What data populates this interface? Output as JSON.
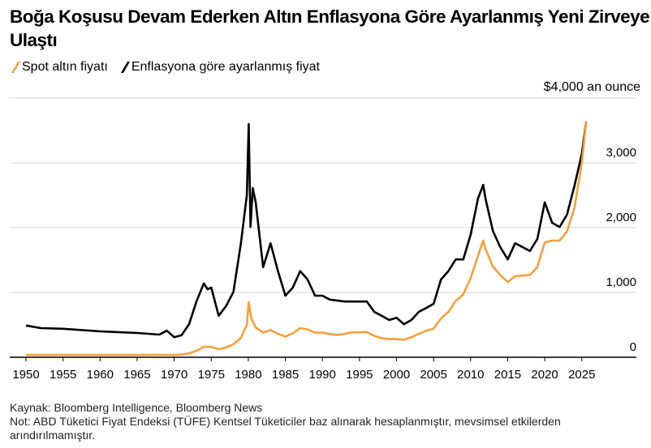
{
  "chart_data": {
    "type": "line",
    "title": "Boğa Koşusu Devam Ederken Altın Enflasyona Göre Ayarlanmış Yeni Zirveye Ulaştı",
    "unit_label": "$4,000 an ounce",
    "xlim": [
      1948.5,
      2033
    ],
    "ylim": [
      0,
      4000
    ],
    "x_ticks": [
      "1950",
      "1955",
      "1960",
      "1965",
      "1970",
      "1975",
      "1980",
      "1985",
      "1990",
      "1995",
      "2000",
      "2005",
      "2010",
      "2015",
      "2020",
      "2025"
    ],
    "y_ticks": [
      {
        "value": 0,
        "label": "0"
      },
      {
        "value": 1000,
        "label": "1,000"
      },
      {
        "value": 2000,
        "label": "2,000"
      },
      {
        "value": 3000,
        "label": "3,000"
      },
      {
        "value": 4000,
        "label": ""
      }
    ],
    "grid": true,
    "legend_position": "top-left",
    "series": [
      {
        "name": "Spot altın fiyatı",
        "color": "#f5a03a",
        "x": [
          1950,
          1955,
          1960,
          1965,
          1968,
          1970,
          1971,
          1972,
          1973,
          1974,
          1975,
          1976,
          1977,
          1978,
          1979,
          1979.8,
          1980.05,
          1980.4,
          1981,
          1982,
          1983,
          1984,
          1985,
          1986,
          1987,
          1988,
          1989,
          1990,
          1991,
          1992,
          1993,
          1994,
          1995,
          1996,
          1997,
          1998,
          1999,
          2000,
          2001,
          2002,
          2003,
          2004,
          2005,
          2006,
          2007,
          2008,
          2009,
          2010,
          2011,
          2011.7,
          2012,
          2013,
          2014,
          2015,
          2016,
          2017,
          2018,
          2019,
          2020,
          2021,
          2022,
          2023,
          2024,
          2025,
          2025.6
        ],
        "y": [
          35,
          35,
          35,
          35,
          38,
          36,
          42,
          60,
          100,
          160,
          160,
          125,
          150,
          200,
          300,
          500,
          850,
          600,
          460,
          380,
          420,
          360,
          320,
          370,
          450,
          430,
          380,
          380,
          360,
          345,
          360,
          385,
          385,
          390,
          330,
          295,
          280,
          280,
          270,
          310,
          360,
          410,
          440,
          600,
          700,
          870,
          970,
          1220,
          1570,
          1800,
          1670,
          1400,
          1270,
          1160,
          1250,
          1260,
          1270,
          1390,
          1770,
          1800,
          1800,
          1940,
          2300,
          3000,
          3640
        ]
      },
      {
        "name": "Enflasyona göre ayarlanmış fiyat",
        "color": "#000000",
        "x": [
          1950,
          1952,
          1955,
          1960,
          1965,
          1968,
          1969,
          1970,
          1971,
          1972,
          1973,
          1974,
          1974.5,
          1975,
          1976,
          1977,
          1978,
          1979,
          1979.8,
          1980.05,
          1980.3,
          1980.6,
          1981,
          1982,
          1983,
          1984,
          1985,
          1986,
          1987,
          1988,
          1989,
          1990,
          1991,
          1993,
          1995,
          1996,
          1997,
          1998,
          1999,
          2000,
          2001,
          2002,
          2003,
          2004,
          2005,
          2006,
          2007,
          2008,
          2009,
          2010,
          2011,
          2011.7,
          2012,
          2013,
          2014,
          2015,
          2016,
          2017,
          2018,
          2019,
          2020,
          2021,
          2022,
          2023,
          2024,
          2025,
          2025.6
        ],
        "y": [
          490,
          450,
          440,
          400,
          375,
          350,
          410,
          310,
          340,
          510,
          860,
          1140,
          1050,
          1075,
          640,
          790,
          1010,
          1760,
          2500,
          3600,
          2010,
          2610,
          2390,
          1390,
          1760,
          1330,
          950,
          1075,
          1330,
          1200,
          950,
          950,
          890,
          860,
          860,
          860,
          700,
          640,
          575,
          610,
          510,
          575,
          700,
          760,
          825,
          1200,
          1330,
          1510,
          1510,
          1890,
          2450,
          2660,
          2450,
          1950,
          1700,
          1510,
          1760,
          1700,
          1640,
          1825,
          2390,
          2075,
          2010,
          2200,
          2640,
          3140,
          3640
        ]
      }
    ]
  },
  "footer": {
    "source": "Kaynak: Bloomberg Intelligence, Bloomberg News",
    "note": "Not: ABD Tüketici Fiyat Endeksi (TÜFE) Kentsel Tüketiciler baz alınarak hesaplanmıştır, mevsimsel etkilerden arındırılmamıştır."
  }
}
